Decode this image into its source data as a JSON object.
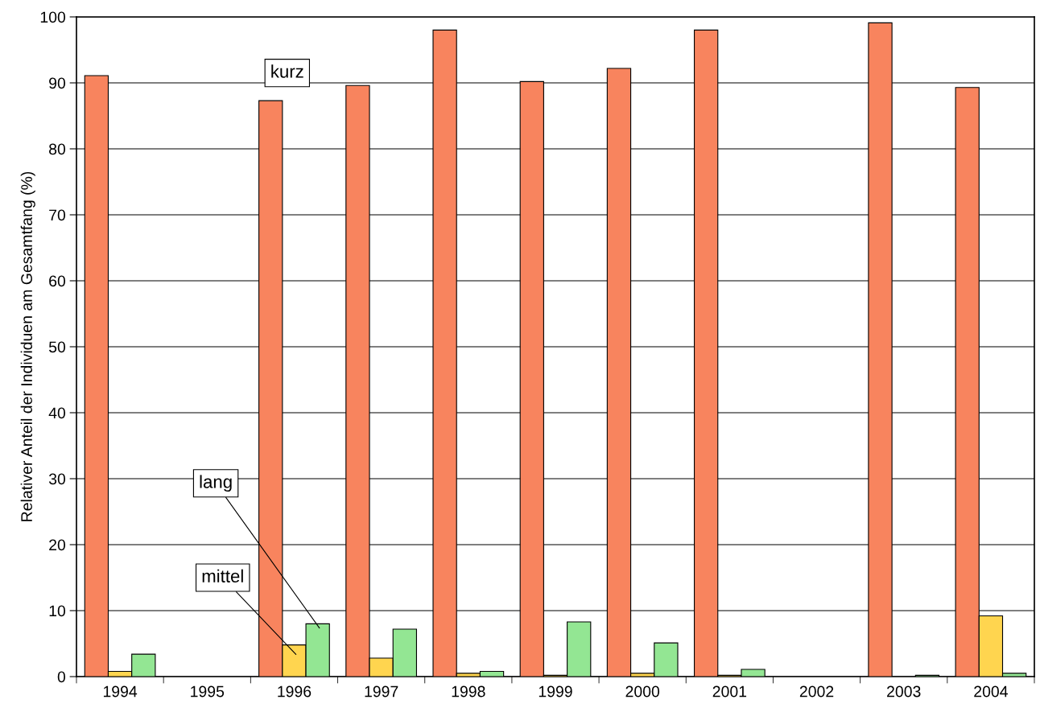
{
  "chart_data": {
    "type": "bar",
    "ylabel": "Relativer Anteil der Individuen am Gesamtfang (%)",
    "categories": [
      "1994",
      "1995",
      "1996",
      "1997",
      "1998",
      "1999",
      "2000",
      "2001",
      "2002",
      "2003",
      "2004"
    ],
    "series": [
      {
        "name": "kurz",
        "color": "#f8845e",
        "values": [
          91.1,
          null,
          87.3,
          89.6,
          98.0,
          90.2,
          92.2,
          98.0,
          null,
          99.1,
          89.3
        ]
      },
      {
        "name": "mittel",
        "color": "#ffd54f",
        "values": [
          0.8,
          null,
          4.8,
          2.8,
          0.5,
          0.2,
          0.5,
          0.2,
          null,
          null,
          9.2
        ]
      },
      {
        "name": "lang",
        "color": "#93e693",
        "values": [
          3.4,
          null,
          8.0,
          7.2,
          0.8,
          8.3,
          5.1,
          1.1,
          null,
          0.2,
          0.5
        ]
      }
    ],
    "ylim": [
      0,
      100
    ],
    "yticks": [
      0,
      10,
      20,
      30,
      40,
      50,
      60,
      70,
      80,
      90,
      100
    ],
    "grid": "y",
    "legend": false
  }
}
